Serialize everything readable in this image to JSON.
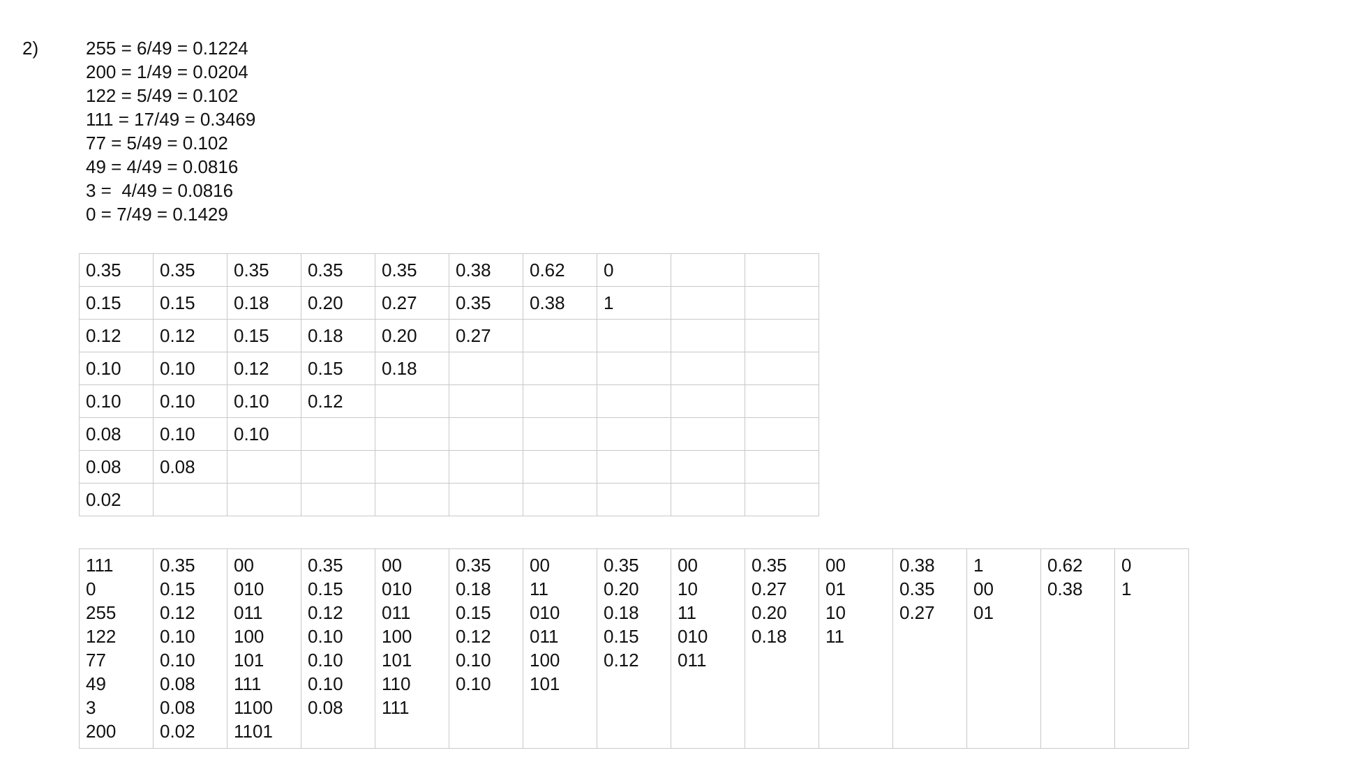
{
  "question_label": "2)",
  "equations": [
    "255 = 6/49 = 0.1224",
    "200 = 1/49 = 0.0204",
    "122 = 5/49 = 0.102",
    "111 = 17/49 = 0.3469",
    "77 = 5/49 = 0.102",
    "49 = 4/49 = 0.0816",
    "3 =  4/49 = 0.0816",
    "0 = 7/49 = 0.1429"
  ],
  "table1": [
    [
      "0.35",
      "0.35",
      "0.35",
      "0.35",
      "0.35",
      "0.38",
      "0.62",
      "0",
      "",
      ""
    ],
    [
      "0.15",
      "0.15",
      "0.18",
      "0.20",
      "0.27",
      "0.35",
      "0.38",
      "1",
      "",
      ""
    ],
    [
      "0.12",
      "0.12",
      "0.15",
      "0.18",
      "0.20",
      "0.27",
      "",
      "",
      "",
      ""
    ],
    [
      "0.10",
      "0.10",
      "0.12",
      "0.15",
      "0.18",
      "",
      "",
      "",
      "",
      ""
    ],
    [
      "0.10",
      "0.10",
      "0.10",
      "0.12",
      "",
      "",
      "",
      "",
      "",
      ""
    ],
    [
      "0.08",
      "0.10",
      "0.10",
      "",
      "",
      "",
      "",
      "",
      "",
      ""
    ],
    [
      "0.08",
      "0.08",
      "",
      "",
      "",
      "",
      "",
      "",
      "",
      ""
    ],
    [
      "0.02",
      "",
      "",
      "",
      "",
      "",
      "",
      "",
      "",
      ""
    ]
  ],
  "table2": [
    [
      "111",
      "0",
      "255",
      "122",
      "77",
      "49",
      "3",
      "200"
    ],
    [
      "0.35",
      "0.15",
      "0.12",
      "0.10",
      "0.10",
      "0.08",
      "0.08",
      "0.02"
    ],
    [
      "00",
      "010",
      "011",
      "100",
      "101",
      "111",
      "1100",
      "1101"
    ],
    [
      "0.35",
      "0.15",
      "0.12",
      "0.10",
      "0.10",
      "0.10",
      "0.08"
    ],
    [
      "00",
      "010",
      "011",
      "100",
      "101",
      "110",
      "111"
    ],
    [
      "0.35",
      "0.18",
      "0.15",
      "0.12",
      "0.10",
      "0.10"
    ],
    [
      "00",
      "11",
      "010",
      "011",
      "100",
      "101"
    ],
    [
      "0.35",
      "0.20",
      "0.18",
      "0.15",
      "0.12"
    ],
    [
      "00",
      "10",
      "11",
      "010",
      "011"
    ],
    [
      "0.35",
      "0.27",
      "0.20",
      "0.18"
    ],
    [
      "00",
      "01",
      "10",
      "11"
    ],
    [
      "0.38",
      "0.35",
      "0.27"
    ],
    [
      "1",
      "00",
      "01"
    ],
    [
      "0.62",
      "0.38"
    ],
    [
      "0",
      "1"
    ]
  ]
}
